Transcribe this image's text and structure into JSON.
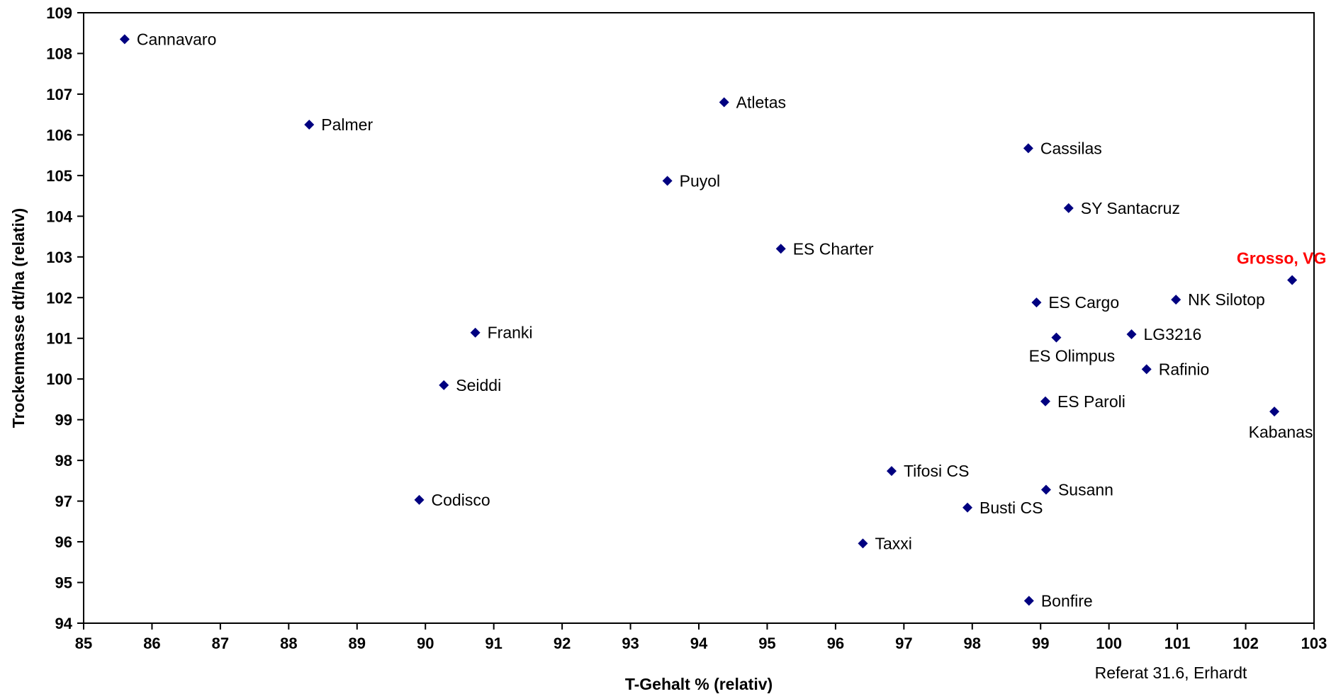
{
  "chart_data": {
    "type": "scatter",
    "title": "",
    "xlabel": "T-Gehalt % (relativ)",
    "ylabel": "Trockenmasse dt/ha (relativ)",
    "xlim": [
      85,
      103
    ],
    "ylim": [
      94,
      109
    ],
    "x_ticks": [
      85,
      86,
      87,
      88,
      89,
      90,
      91,
      92,
      93,
      94,
      95,
      96,
      97,
      98,
      99,
      100,
      101,
      102,
      103
    ],
    "y_ticks": [
      94,
      95,
      96,
      97,
      98,
      99,
      100,
      101,
      102,
      103,
      104,
      105,
      106,
      107,
      108,
      109
    ],
    "grid": false,
    "legend": "none",
    "marker_color": "#000080",
    "highlight_color": "#ff0000",
    "points": [
      {
        "label": "Cannavaro",
        "x": 85.6,
        "y": 108.35
      },
      {
        "label": "Palmer",
        "x": 88.3,
        "y": 106.25
      },
      {
        "label": "Atletas",
        "x": 94.37,
        "y": 106.8
      },
      {
        "label": "Puyol",
        "x": 93.54,
        "y": 104.87
      },
      {
        "label": "Cassilas",
        "x": 98.82,
        "y": 105.67
      },
      {
        "label": "SY Santacruz",
        "x": 99.41,
        "y": 104.2
      },
      {
        "label": "ES Charter",
        "x": 95.2,
        "y": 103.2
      },
      {
        "label": "Grosso, VG",
        "x": 102.68,
        "y": 102.43,
        "highlight": true
      },
      {
        "label": "NK Silotop",
        "x": 100.98,
        "y": 101.95
      },
      {
        "label": "ES Cargo",
        "x": 98.94,
        "y": 101.88
      },
      {
        "label": "LG3216",
        "x": 100.33,
        "y": 101.1
      },
      {
        "label": "ES Olimpus",
        "x": 99.23,
        "y": 101.02
      },
      {
        "label": "Rafinio",
        "x": 100.55,
        "y": 100.24
      },
      {
        "label": "Franki",
        "x": 90.73,
        "y": 101.14
      },
      {
        "label": "Seiddi",
        "x": 90.27,
        "y": 99.85
      },
      {
        "label": "ES Paroli",
        "x": 99.07,
        "y": 99.45
      },
      {
        "label": "Kabanas",
        "x": 102.42,
        "y": 99.2
      },
      {
        "label": "Tifosi CS",
        "x": 96.82,
        "y": 97.74
      },
      {
        "label": "Susann",
        "x": 99.08,
        "y": 97.28
      },
      {
        "label": "Codisco",
        "x": 89.91,
        "y": 97.03
      },
      {
        "label": "Busti CS",
        "x": 97.93,
        "y": 96.84
      },
      {
        "label": "Taxxi",
        "x": 96.4,
        "y": 95.96
      },
      {
        "label": "Bonfire",
        "x": 98.83,
        "y": 94.55
      }
    ],
    "annotation": "Referat 31.6, Erhardt"
  }
}
